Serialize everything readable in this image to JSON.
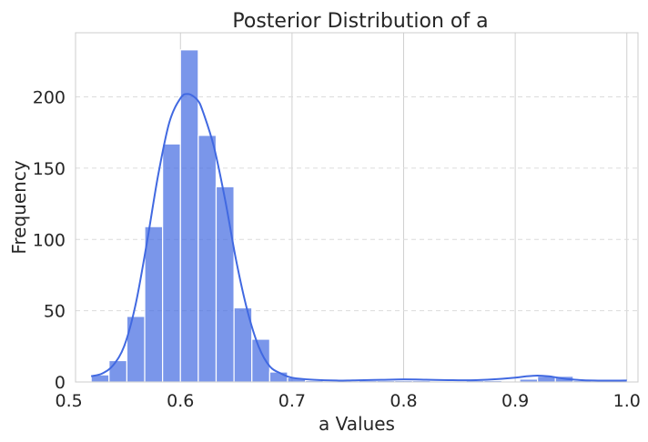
{
  "chart_data": {
    "type": "bar",
    "subtype": "histogram-with-kde",
    "title": "Posterior Distribution of a",
    "xlabel": "a Values",
    "ylabel": "Frequency",
    "xlim": [
      0.506,
      1.01
    ],
    "ylim": [
      0,
      245
    ],
    "xticks": [
      0.5,
      0.6,
      0.7,
      0.8,
      0.9,
      1.0
    ],
    "xtick_labels": [
      "0.5",
      "0.6",
      "0.7",
      "0.8",
      "0.9",
      "1.0"
    ],
    "yticks": [
      0,
      50,
      100,
      150,
      200
    ],
    "ytick_labels": [
      "0",
      "50",
      "100",
      "150",
      "200"
    ],
    "grid": {
      "vertical": true,
      "horizontal_dashed": true
    },
    "bin_edges": [
      0.52,
      0.536,
      0.552,
      0.568,
      0.584,
      0.6,
      0.616,
      0.632,
      0.648,
      0.664,
      0.68,
      0.696,
      0.712,
      0.728,
      0.744,
      0.76,
      0.776,
      0.792,
      0.808,
      0.824,
      0.84,
      0.856,
      0.872,
      0.888,
      0.904,
      0.92,
      0.936,
      0.952,
      0.968,
      0.984,
      1.0
    ],
    "values": [
      5,
      15,
      46,
      109,
      167,
      233,
      173,
      137,
      52,
      30,
      7,
      3,
      1,
      0,
      0,
      1,
      1,
      1,
      1,
      0,
      0,
      1,
      1,
      0,
      2,
      4,
      4,
      1,
      0,
      1
    ],
    "kde": {
      "x": [
        0.52,
        0.53,
        0.54,
        0.55,
        0.56,
        0.57,
        0.58,
        0.59,
        0.6,
        0.607,
        0.615,
        0.62,
        0.63,
        0.64,
        0.65,
        0.66,
        0.67,
        0.68,
        0.69,
        0.7,
        0.72,
        0.74,
        0.76,
        0.78,
        0.8,
        0.82,
        0.84,
        0.86,
        0.88,
        0.9,
        0.91,
        0.92,
        0.93,
        0.94,
        0.95,
        0.97,
        1.0
      ],
      "y": [
        4,
        6,
        12,
        26,
        55,
        98,
        145,
        182,
        199,
        202,
        198,
        190,
        165,
        128,
        85,
        50,
        25,
        11,
        6,
        3,
        1.5,
        1,
        1.2,
        1.5,
        1.8,
        1.6,
        1.3,
        1.2,
        1.8,
        3,
        4,
        4.5,
        4,
        2.8,
        1.8,
        1,
        1
      ]
    },
    "colors": {
      "bar": "#4169e1",
      "kde": "#4169e1"
    }
  }
}
